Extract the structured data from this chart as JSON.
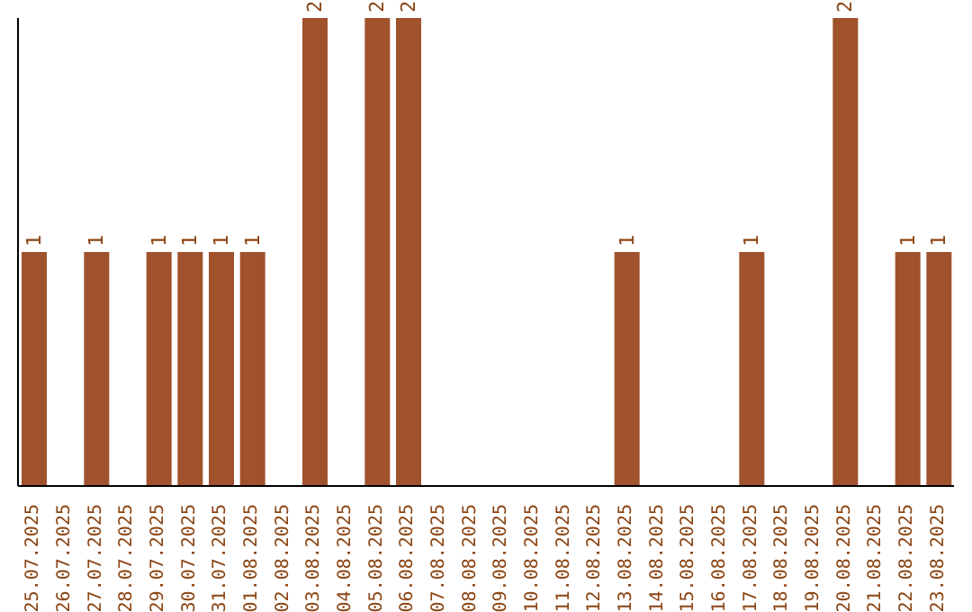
{
  "chart_data": {
    "type": "bar",
    "categories": [
      "25.07.2025",
      "26.07.2025",
      "27.07.2025",
      "28.07.2025",
      "29.07.2025",
      "30.07.2025",
      "31.07.2025",
      "01.08.2025",
      "02.08.2025",
      "03.08.2025",
      "04.08.2025",
      "05.08.2025",
      "06.08.2025",
      "07.08.2025",
      "08.08.2025",
      "09.08.2025",
      "10.08.2025",
      "11.08.2025",
      "12.08.2025",
      "13.08.2025",
      "14.08.2025",
      "15.08.2025",
      "16.08.2025",
      "17.08.2025",
      "18.08.2025",
      "19.08.2025",
      "20.08.2025",
      "21.08.2025",
      "22.08.2025",
      "23.08.2025"
    ],
    "values": [
      1,
      0,
      1,
      0,
      1,
      1,
      1,
      1,
      0,
      2,
      0,
      2,
      2,
      0,
      0,
      0,
      0,
      0,
      0,
      1,
      0,
      0,
      0,
      1,
      0,
      0,
      2,
      0,
      1,
      1
    ],
    "value_labels": [
      "1",
      null,
      "1",
      null,
      "1",
      "1",
      "1",
      "1",
      null,
      "2",
      null,
      "2",
      "2",
      null,
      null,
      null,
      null,
      null,
      null,
      "1",
      null,
      null,
      null,
      "1",
      null,
      null,
      "2",
      null,
      "1",
      "1"
    ],
    "color": "#a0522d",
    "ylim": [
      0,
      2
    ],
    "grid": false,
    "legend": false
  }
}
